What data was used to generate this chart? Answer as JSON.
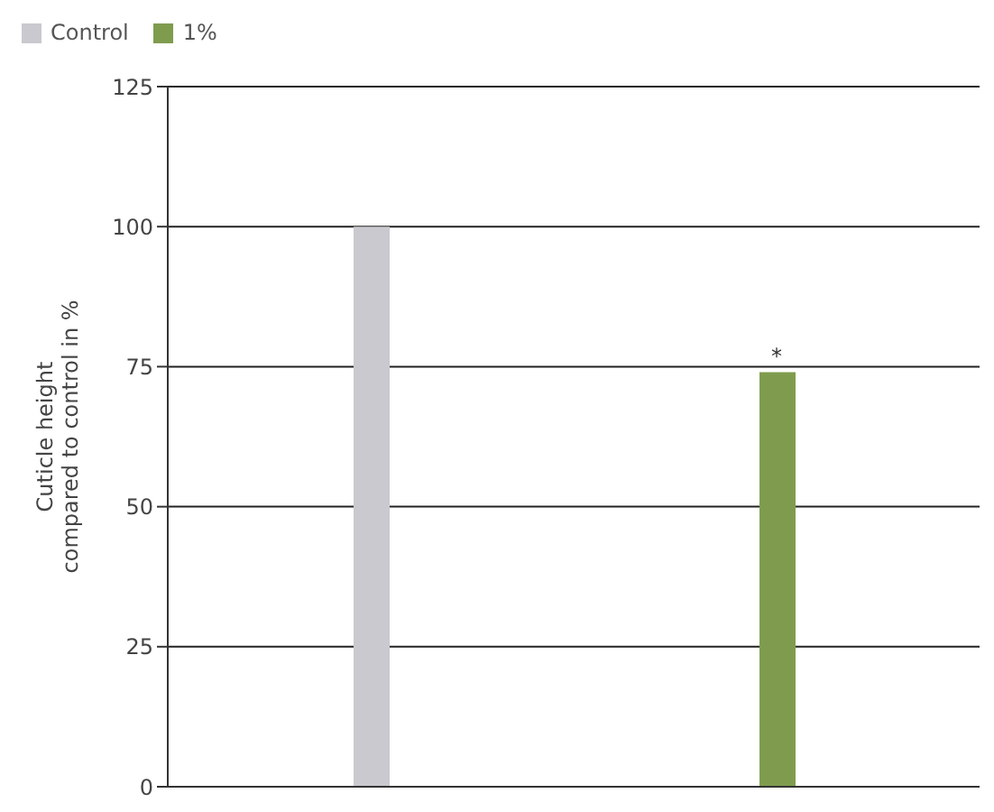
{
  "chart_data": {
    "type": "bar",
    "categories": [
      null,
      null
    ],
    "series": [
      {
        "name": "Control",
        "color": "#c9c9cf",
        "values": [
          100,
          null
        ]
      },
      {
        "name": "1%",
        "color": "#7f9c4e",
        "values": [
          null,
          74
        ]
      }
    ],
    "ylabel": "Cuticle height\ncompared to control in %",
    "ylim": [
      0,
      125
    ],
    "yticks": [
      0,
      25,
      50,
      75,
      100,
      125
    ],
    "grid": "y",
    "legend": "top left",
    "tick_labels": "y",
    "annotations": [
      {
        "text": "*",
        "y": 74
      }
    ]
  }
}
